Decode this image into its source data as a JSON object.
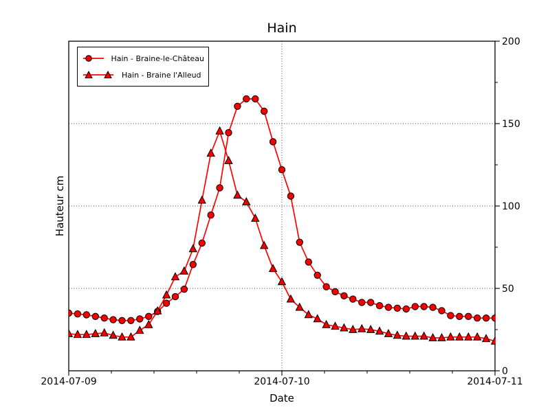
{
  "chart_data": {
    "type": "line",
    "title": "Hain",
    "xlabel": "Date",
    "ylabel": "Hauteur cm",
    "x_tick_labels": [
      "2014-07-09",
      "2014-07-10",
      "2014-07-11"
    ],
    "x_major_hours": [
      0,
      24,
      48
    ],
    "x_minor_per_interval": 4,
    "x_range_hours": [
      0,
      48
    ],
    "ylim": [
      0,
      200
    ],
    "y_major_ticks": [
      0,
      50,
      100,
      150,
      200
    ],
    "y_minor_step": 25,
    "grid": {
      "style": "dotted",
      "color": "#333333",
      "y_values": [
        50,
        100,
        150
      ],
      "x_hours": [
        24
      ]
    },
    "legend_position": "upper-left",
    "series": [
      {
        "name": "Hain - Braine-le-Château",
        "marker": "circle",
        "color": "#ff0000",
        "marker_fill": "#f40000",
        "marker_edge": "#000000",
        "x_start_hour": 0,
        "x_step_hours": 1,
        "values": [
          35,
          34.5,
          34,
          33,
          32,
          31,
          30.5,
          30.5,
          31.5,
          33,
          36,
          41,
          45,
          49.5,
          64.5,
          77.5,
          94.5,
          111,
          144.5,
          160.5,
          165,
          165,
          157.5,
          139,
          122,
          106,
          78,
          66,
          58,
          51,
          48,
          45.5,
          43.5,
          41.5,
          41.5,
          39.5,
          38.5,
          38,
          37.5,
          39,
          39,
          38.5,
          36.5,
          33.5,
          33,
          33,
          32,
          32,
          32
        ]
      },
      {
        "name": "Hain - Braine l'Alleud",
        "marker": "triangle",
        "color": "#ff0000",
        "marker_fill": "#f40000",
        "marker_edge": "#000000",
        "x_start_hour": 0,
        "x_step_hours": 1,
        "values": [
          22.5,
          22,
          22,
          22.5,
          23,
          21.5,
          20.5,
          20.5,
          24.5,
          28,
          36.3,
          46,
          57,
          60.5,
          74,
          103.5,
          132,
          145.5,
          127.5,
          106.5,
          102.5,
          92.5,
          76,
          62,
          54,
          43.5,
          38.5,
          34,
          31.5,
          28,
          27,
          26,
          25,
          25.5,
          25,
          24,
          22.5,
          21.5,
          21,
          21,
          21,
          20,
          20,
          20.5,
          20.5,
          20.5,
          20.5,
          19.5,
          18
        ]
      }
    ]
  }
}
